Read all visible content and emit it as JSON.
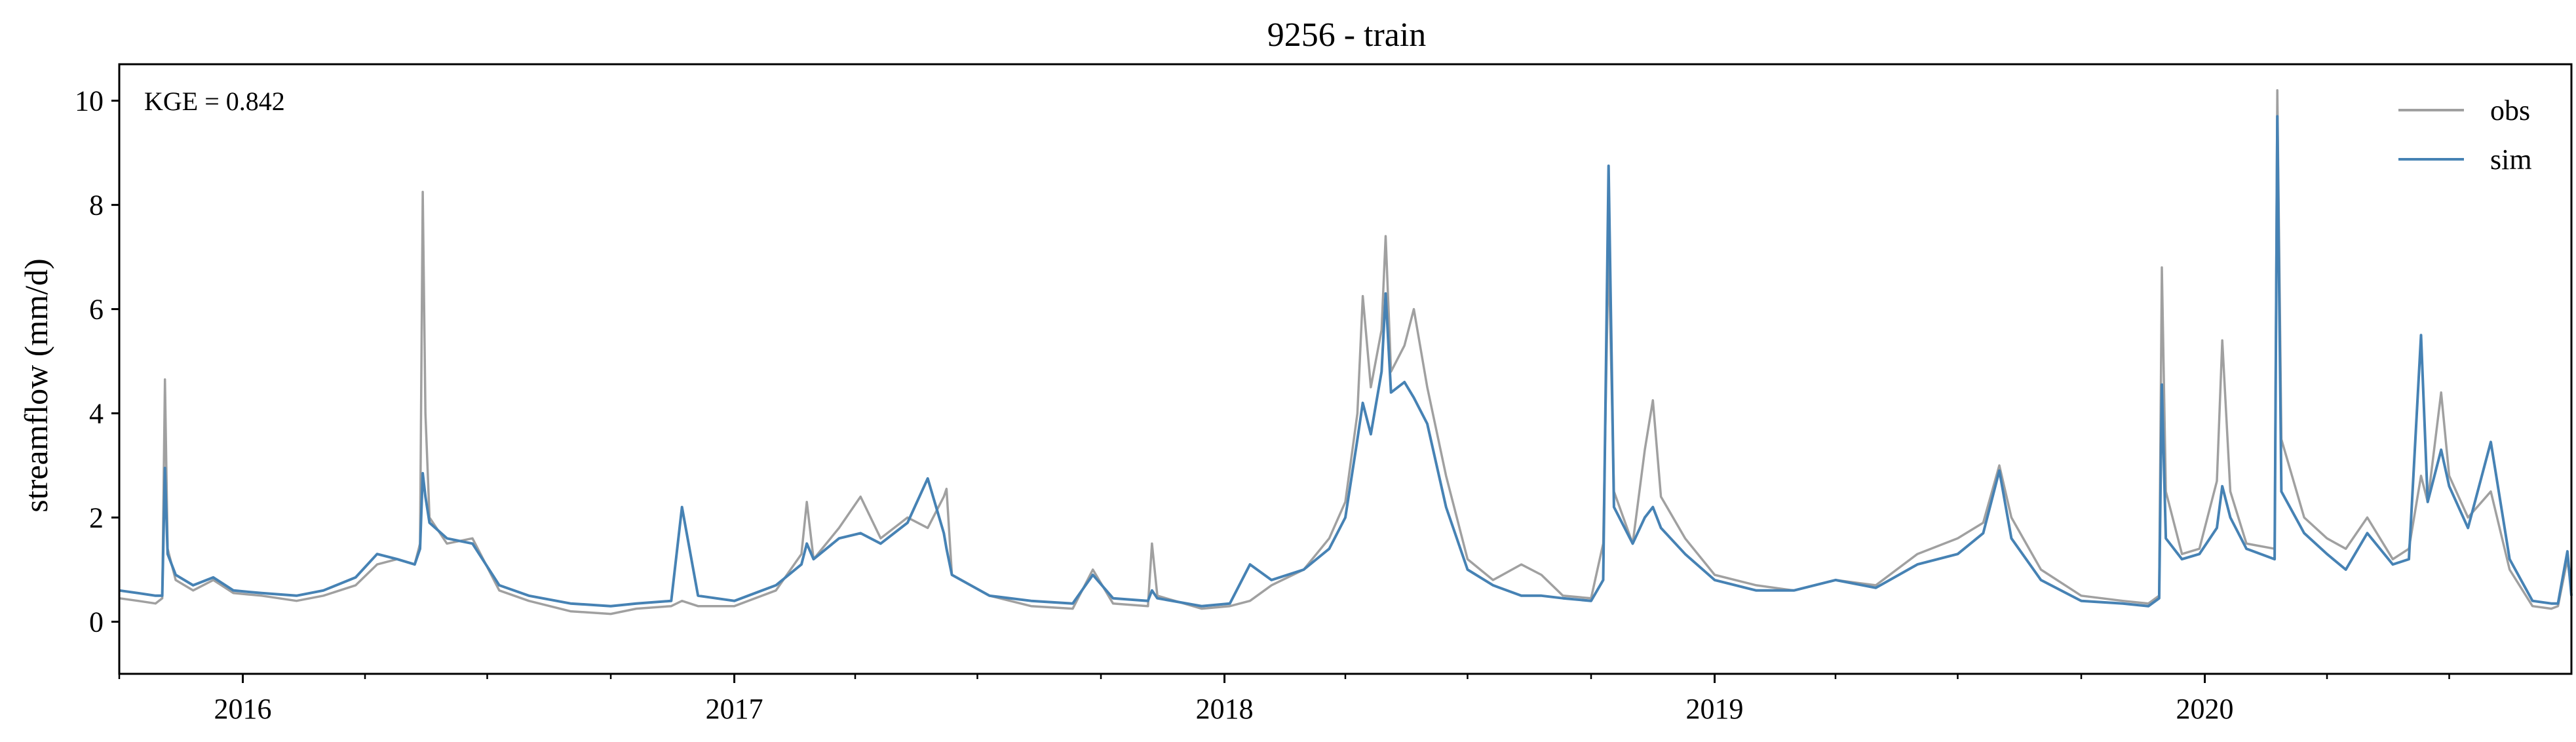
{
  "chart_data": {
    "type": "line",
    "title": "9256 - train",
    "xlabel": "",
    "ylabel": "streamflow (mm/d)",
    "annotation": "KGE = 0.842",
    "xlim": [
      "2015-10-01",
      "2020-09-30"
    ],
    "ylim": [
      -1.0,
      10.7
    ],
    "x_ticks": [
      "2016",
      "2017",
      "2018",
      "2019",
      "2020"
    ],
    "y_ticks": [
      "0",
      "2",
      "4",
      "6",
      "8",
      "10"
    ],
    "legend": {
      "position": "top-right",
      "entries": [
        "obs",
        "sim"
      ]
    },
    "grid": false,
    "colors": {
      "obs": "#a0a0a0",
      "sim": "#4682b4"
    },
    "series": [
      {
        "name": "obs",
        "points": [
          [
            "2015-10-01",
            0.45
          ],
          [
            "2015-10-15",
            0.4
          ],
          [
            "2015-10-28",
            0.35
          ],
          [
            "2015-11-02",
            0.45
          ],
          [
            "2015-11-04",
            4.65
          ],
          [
            "2015-11-06",
            1.4
          ],
          [
            "2015-11-12",
            0.8
          ],
          [
            "2015-11-25",
            0.6
          ],
          [
            "2015-12-10",
            0.8
          ],
          [
            "2015-12-25",
            0.55
          ],
          [
            "2016-01-15",
            0.5
          ],
          [
            "2016-02-10",
            0.4
          ],
          [
            "2016-03-01",
            0.5
          ],
          [
            "2016-03-25",
            0.7
          ],
          [
            "2016-04-10",
            1.1
          ],
          [
            "2016-04-25",
            1.2
          ],
          [
            "2016-05-08",
            1.1
          ],
          [
            "2016-05-12",
            1.5
          ],
          [
            "2016-05-14",
            8.25
          ],
          [
            "2016-05-16",
            4.0
          ],
          [
            "2016-05-19",
            2.0
          ],
          [
            "2016-06-01",
            1.5
          ],
          [
            "2016-06-20",
            1.6
          ],
          [
            "2016-07-10",
            0.6
          ],
          [
            "2016-08-01",
            0.4
          ],
          [
            "2016-09-01",
            0.2
          ],
          [
            "2016-10-01",
            0.15
          ],
          [
            "2016-10-20",
            0.25
          ],
          [
            "2016-11-15",
            0.3
          ],
          [
            "2016-11-23",
            0.4
          ],
          [
            "2016-12-05",
            0.3
          ],
          [
            "2017-01-01",
            0.3
          ],
          [
            "2017-02-01",
            0.6
          ],
          [
            "2017-02-20",
            1.3
          ],
          [
            "2017-02-24",
            2.3
          ],
          [
            "2017-03-01",
            1.2
          ],
          [
            "2017-03-20",
            1.8
          ],
          [
            "2017-04-05",
            2.4
          ],
          [
            "2017-04-20",
            1.6
          ],
          [
            "2017-05-10",
            2.0
          ],
          [
            "2017-05-25",
            1.8
          ],
          [
            "2017-06-06",
            2.4
          ],
          [
            "2017-06-08",
            2.55
          ],
          [
            "2017-06-12",
            0.9
          ],
          [
            "2017-07-10",
            0.5
          ],
          [
            "2017-08-10",
            0.3
          ],
          [
            "2017-09-10",
            0.25
          ],
          [
            "2017-09-25",
            1.0
          ],
          [
            "2017-10-10",
            0.35
          ],
          [
            "2017-11-05",
            0.3
          ],
          [
            "2017-11-08",
            1.5
          ],
          [
            "2017-11-12",
            0.5
          ],
          [
            "2017-12-15",
            0.25
          ],
          [
            "2018-01-05",
            0.3
          ],
          [
            "2018-01-20",
            0.4
          ],
          [
            "2018-02-05",
            0.7
          ],
          [
            "2018-03-01",
            1.0
          ],
          [
            "2018-03-20",
            1.6
          ],
          [
            "2018-04-01",
            2.3
          ],
          [
            "2018-04-10",
            4.0
          ],
          [
            "2018-04-14",
            6.25
          ],
          [
            "2018-04-20",
            4.5
          ],
          [
            "2018-04-28",
            5.6
          ],
          [
            "2018-05-01",
            7.4
          ],
          [
            "2018-05-05",
            4.8
          ],
          [
            "2018-05-15",
            5.3
          ],
          [
            "2018-05-22",
            6.0
          ],
          [
            "2018-06-01",
            4.5
          ],
          [
            "2018-06-15",
            2.8
          ],
          [
            "2018-07-01",
            1.2
          ],
          [
            "2018-07-20",
            0.8
          ],
          [
            "2018-08-10",
            1.1
          ],
          [
            "2018-08-25",
            0.9
          ],
          [
            "2018-09-10",
            0.5
          ],
          [
            "2018-10-01",
            0.45
          ],
          [
            "2018-10-10",
            1.5
          ],
          [
            "2018-10-14",
            7.2
          ],
          [
            "2018-10-18",
            2.5
          ],
          [
            "2018-11-01",
            1.5
          ],
          [
            "2018-11-10",
            3.3
          ],
          [
            "2018-11-16",
            4.25
          ],
          [
            "2018-11-22",
            2.4
          ],
          [
            "2018-12-10",
            1.6
          ],
          [
            "2019-01-01",
            0.9
          ],
          [
            "2019-02-01",
            0.7
          ],
          [
            "2019-03-01",
            0.6
          ],
          [
            "2019-04-01",
            0.8
          ],
          [
            "2019-05-01",
            0.7
          ],
          [
            "2019-06-01",
            1.3
          ],
          [
            "2019-07-01",
            1.6
          ],
          [
            "2019-07-20",
            1.9
          ],
          [
            "2019-08-01",
            3.0
          ],
          [
            "2019-08-10",
            2.0
          ],
          [
            "2019-09-01",
            1.0
          ],
          [
            "2019-10-01",
            0.5
          ],
          [
            "2019-11-01",
            0.4
          ],
          [
            "2019-11-20",
            0.35
          ],
          [
            "2019-11-28",
            0.5
          ],
          [
            "2019-11-30",
            6.8
          ],
          [
            "2019-12-03",
            2.5
          ],
          [
            "2019-12-15",
            1.3
          ],
          [
            "2019-12-28",
            1.4
          ],
          [
            "2020-01-10",
            2.7
          ],
          [
            "2020-01-14",
            5.4
          ],
          [
            "2020-01-20",
            2.5
          ],
          [
            "2020-02-01",
            1.5
          ],
          [
            "2020-02-22",
            1.4
          ],
          [
            "2020-02-24",
            10.2
          ],
          [
            "2020-02-27",
            3.5
          ],
          [
            "2020-03-15",
            2.0
          ],
          [
            "2020-04-01",
            1.6
          ],
          [
            "2020-04-15",
            1.4
          ],
          [
            "2020-05-01",
            2.0
          ],
          [
            "2020-05-20",
            1.2
          ],
          [
            "2020-06-01",
            1.4
          ],
          [
            "2020-06-10",
            2.8
          ],
          [
            "2020-06-15",
            2.3
          ],
          [
            "2020-06-25",
            4.4
          ],
          [
            "2020-07-01",
            2.8
          ],
          [
            "2020-07-15",
            2.0
          ],
          [
            "2020-08-01",
            2.5
          ],
          [
            "2020-08-15",
            1.0
          ],
          [
            "2020-09-01",
            0.3
          ],
          [
            "2020-09-15",
            0.25
          ],
          [
            "2020-09-20",
            0.3
          ],
          [
            "2020-09-27",
            1.2
          ],
          [
            "2020-09-30",
            0.6
          ]
        ]
      },
      {
        "name": "sim",
        "points": [
          [
            "2015-10-01",
            0.6
          ],
          [
            "2015-10-15",
            0.55
          ],
          [
            "2015-10-28",
            0.5
          ],
          [
            "2015-11-02",
            0.5
          ],
          [
            "2015-11-04",
            2.95
          ],
          [
            "2015-11-06",
            1.3
          ],
          [
            "2015-11-12",
            0.9
          ],
          [
            "2015-11-25",
            0.7
          ],
          [
            "2015-12-10",
            0.85
          ],
          [
            "2015-12-25",
            0.6
          ],
          [
            "2016-01-15",
            0.55
          ],
          [
            "2016-02-10",
            0.5
          ],
          [
            "2016-03-01",
            0.6
          ],
          [
            "2016-03-25",
            0.85
          ],
          [
            "2016-04-10",
            1.3
          ],
          [
            "2016-04-25",
            1.2
          ],
          [
            "2016-05-08",
            1.1
          ],
          [
            "2016-05-12",
            1.4
          ],
          [
            "2016-05-14",
            2.85
          ],
          [
            "2016-05-16",
            2.4
          ],
          [
            "2016-05-19",
            1.9
          ],
          [
            "2016-06-01",
            1.6
          ],
          [
            "2016-06-20",
            1.5
          ],
          [
            "2016-07-10",
            0.7
          ],
          [
            "2016-08-01",
            0.5
          ],
          [
            "2016-09-01",
            0.35
          ],
          [
            "2016-10-01",
            0.3
          ],
          [
            "2016-10-20",
            0.35
          ],
          [
            "2016-11-15",
            0.4
          ],
          [
            "2016-11-23",
            2.2
          ],
          [
            "2016-12-05",
            0.5
          ],
          [
            "2017-01-01",
            0.4
          ],
          [
            "2017-02-01",
            0.7
          ],
          [
            "2017-02-20",
            1.1
          ],
          [
            "2017-02-24",
            1.5
          ],
          [
            "2017-03-01",
            1.2
          ],
          [
            "2017-03-20",
            1.6
          ],
          [
            "2017-04-05",
            1.7
          ],
          [
            "2017-04-20",
            1.5
          ],
          [
            "2017-05-10",
            1.9
          ],
          [
            "2017-05-25",
            2.75
          ],
          [
            "2017-06-06",
            1.7
          ],
          [
            "2017-06-08",
            1.4
          ],
          [
            "2017-06-12",
            0.9
          ],
          [
            "2017-07-10",
            0.5
          ],
          [
            "2017-08-10",
            0.4
          ],
          [
            "2017-09-10",
            0.35
          ],
          [
            "2017-09-25",
            0.9
          ],
          [
            "2017-10-10",
            0.45
          ],
          [
            "2017-11-05",
            0.4
          ],
          [
            "2017-11-08",
            0.6
          ],
          [
            "2017-11-12",
            0.45
          ],
          [
            "2017-12-15",
            0.3
          ],
          [
            "2018-01-05",
            0.35
          ],
          [
            "2018-01-20",
            1.1
          ],
          [
            "2018-02-05",
            0.8
          ],
          [
            "2018-03-01",
            1.0
          ],
          [
            "2018-03-20",
            1.4
          ],
          [
            "2018-04-01",
            2.0
          ],
          [
            "2018-04-10",
            3.5
          ],
          [
            "2018-04-14",
            4.2
          ],
          [
            "2018-04-20",
            3.6
          ],
          [
            "2018-04-28",
            4.8
          ],
          [
            "2018-05-01",
            6.3
          ],
          [
            "2018-05-05",
            4.4
          ],
          [
            "2018-05-15",
            4.6
          ],
          [
            "2018-05-22",
            4.3
          ],
          [
            "2018-06-01",
            3.8
          ],
          [
            "2018-06-15",
            2.2
          ],
          [
            "2018-07-01",
            1.0
          ],
          [
            "2018-07-20",
            0.7
          ],
          [
            "2018-08-10",
            0.5
          ],
          [
            "2018-08-25",
            0.5
          ],
          [
            "2018-09-10",
            0.45
          ],
          [
            "2018-10-01",
            0.4
          ],
          [
            "2018-10-10",
            0.8
          ],
          [
            "2018-10-14",
            8.75
          ],
          [
            "2018-10-18",
            2.2
          ],
          [
            "2018-11-01",
            1.5
          ],
          [
            "2018-11-10",
            2.0
          ],
          [
            "2018-11-16",
            2.2
          ],
          [
            "2018-11-22",
            1.8
          ],
          [
            "2018-12-10",
            1.3
          ],
          [
            "2019-01-01",
            0.8
          ],
          [
            "2019-02-01",
            0.6
          ],
          [
            "2019-03-01",
            0.6
          ],
          [
            "2019-04-01",
            0.8
          ],
          [
            "2019-05-01",
            0.65
          ],
          [
            "2019-06-01",
            1.1
          ],
          [
            "2019-07-01",
            1.3
          ],
          [
            "2019-07-20",
            1.7
          ],
          [
            "2019-08-01",
            2.9
          ],
          [
            "2019-08-10",
            1.6
          ],
          [
            "2019-09-01",
            0.8
          ],
          [
            "2019-10-01",
            0.4
          ],
          [
            "2019-11-01",
            0.35
          ],
          [
            "2019-11-20",
            0.3
          ],
          [
            "2019-11-28",
            0.45
          ],
          [
            "2019-11-30",
            4.55
          ],
          [
            "2019-12-03",
            1.6
          ],
          [
            "2019-12-15",
            1.2
          ],
          [
            "2019-12-28",
            1.3
          ],
          [
            "2020-01-10",
            1.8
          ],
          [
            "2020-01-14",
            2.6
          ],
          [
            "2020-01-20",
            2.0
          ],
          [
            "2020-02-01",
            1.4
          ],
          [
            "2020-02-22",
            1.2
          ],
          [
            "2020-02-24",
            9.7
          ],
          [
            "2020-02-27",
            2.5
          ],
          [
            "2020-03-15",
            1.7
          ],
          [
            "2020-04-01",
            1.3
          ],
          [
            "2020-04-15",
            1.0
          ],
          [
            "2020-05-01",
            1.7
          ],
          [
            "2020-05-20",
            1.1
          ],
          [
            "2020-06-01",
            1.2
          ],
          [
            "2020-06-10",
            5.5
          ],
          [
            "2020-06-15",
            2.3
          ],
          [
            "2020-06-25",
            3.3
          ],
          [
            "2020-07-01",
            2.6
          ],
          [
            "2020-07-15",
            1.8
          ],
          [
            "2020-08-01",
            3.45
          ],
          [
            "2020-08-15",
            1.2
          ],
          [
            "2020-09-01",
            0.4
          ],
          [
            "2020-09-15",
            0.35
          ],
          [
            "2020-09-20",
            0.35
          ],
          [
            "2020-09-27",
            1.35
          ],
          [
            "2020-09-30",
            0.5
          ]
        ]
      }
    ]
  }
}
